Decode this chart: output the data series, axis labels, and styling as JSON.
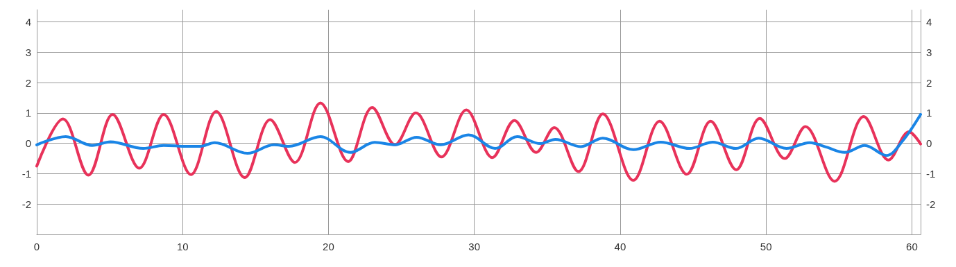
{
  "chart_data": {
    "type": "line",
    "xlim": [
      0,
      60.6
    ],
    "xticks": [
      0,
      10,
      20,
      30,
      40,
      50,
      60
    ],
    "ylim": [
      -3,
      4.4
    ],
    "yticks": [
      -2,
      -1,
      0,
      1,
      2,
      3,
      4
    ],
    "y2lim": [
      -3,
      4.4
    ],
    "y2ticks": [
      -2,
      -1,
      0,
      1,
      2,
      3,
      4
    ],
    "grid": true,
    "marker": "none",
    "line_style": "solid",
    "series": [
      {
        "color": "#e8325a",
        "x": [
          0,
          1.8,
          3.54,
          5.2,
          7.03,
          8.7,
          10.57,
          12.3,
          14.26,
          16.0,
          17.7,
          19.45,
          21.35,
          23.0,
          24.56,
          25.99,
          27.75,
          29.45,
          31.24,
          32.75,
          34.24,
          35.48,
          37.14,
          38.81,
          40.9,
          42.7,
          44.57,
          46.2,
          47.96,
          49.57,
          51.28,
          52.7,
          54.7,
          56.7,
          58.4,
          59.8,
          60.6
        ],
        "values": [
          -0.75,
          0.8,
          -1.05,
          0.95,
          -0.82,
          0.95,
          -1.03,
          1.05,
          -1.13,
          0.78,
          -0.63,
          1.33,
          -0.6,
          1.18,
          -0.05,
          1.0,
          -0.45,
          1.1,
          -0.47,
          0.75,
          -0.3,
          0.52,
          -0.93,
          0.97,
          -1.22,
          0.73,
          -1.02,
          0.73,
          -0.87,
          0.82,
          -0.5,
          0.55,
          -1.25,
          0.88,
          -0.55,
          0.38,
          -0.02
        ]
      },
      {
        "color": "#1a85e6",
        "x": [
          0,
          1.99,
          3.8,
          5.05,
          7.3,
          8.7,
          10.3,
          11.2,
          12.2,
          14.45,
          16.27,
          17.3,
          19.45,
          21.5,
          23.17,
          24.56,
          26.04,
          27.7,
          29.6,
          31.43,
          32.94,
          34.52,
          35.56,
          37.3,
          38.81,
          40.9,
          42.78,
          44.76,
          46.35,
          47.94,
          49.5,
          51.4,
          53.0,
          54.1,
          55.4,
          56.77,
          58.26,
          59.4,
          60.6
        ],
        "values": [
          -0.05,
          0.22,
          -0.07,
          0.05,
          -0.17,
          -0.07,
          -0.1,
          -0.1,
          0.02,
          -0.33,
          -0.05,
          -0.1,
          0.22,
          -0.3,
          0.03,
          -0.05,
          0.2,
          -0.05,
          0.28,
          -0.17,
          0.22,
          -0.01,
          0.13,
          -0.11,
          0.17,
          -0.21,
          0.04,
          -0.17,
          0.04,
          -0.17,
          0.17,
          -0.17,
          0.02,
          -0.12,
          -0.3,
          -0.07,
          -0.4,
          0.1,
          0.95
        ]
      }
    ]
  }
}
